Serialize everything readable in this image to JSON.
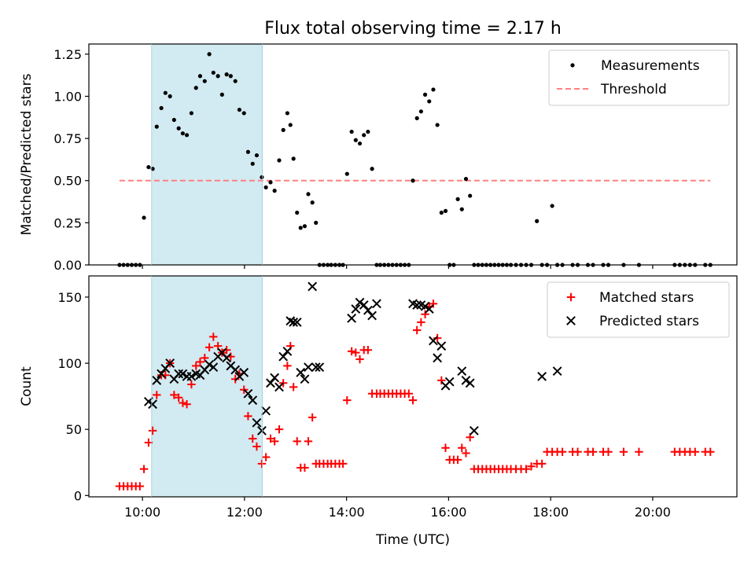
{
  "chart_data": {
    "title": "Flux total observing time = 2.17 h",
    "xlabel": "Time (UTC)",
    "x_unit": "hours UTC",
    "xlim": [
      8.95,
      21.65
    ],
    "x_ticks": [
      {
        "value": 10,
        "label": "10:00"
      },
      {
        "value": 12,
        "label": "12:00"
      },
      {
        "value": 14,
        "label": "14:00"
      },
      {
        "value": 16,
        "label": "16:00"
      },
      {
        "value": 18,
        "label": "18:00"
      },
      {
        "value": 20,
        "label": "20:00"
      }
    ],
    "observing_window": {
      "start": 10.18,
      "end": 12.35,
      "color": "#add8e6"
    },
    "panels": [
      {
        "type": "scatter",
        "ylabel": "Matched/Predicted stars",
        "ylim": [
          0,
          1.31
        ],
        "y_ticks": [
          {
            "value": 0.0,
            "label": "0.00"
          },
          {
            "value": 0.25,
            "label": "0.25"
          },
          {
            "value": 0.5,
            "label": "0.50"
          },
          {
            "value": 0.75,
            "label": "0.75"
          },
          {
            "value": 1.0,
            "label": "1.00"
          },
          {
            "value": 1.25,
            "label": "1.25"
          }
        ],
        "legend_position": "top-right",
        "series": [
          {
            "name": "Measurements",
            "marker": "dot",
            "color": "#000000",
            "x": [
              9.55,
              9.63,
              9.71,
              9.79,
              9.87,
              9.95,
              10.03,
              10.12,
              10.2,
              10.28,
              10.37,
              10.45,
              10.54,
              10.62,
              10.71,
              10.79,
              10.87,
              10.96,
              11.05,
              11.13,
              11.22,
              11.31,
              11.39,
              11.48,
              11.56,
              11.65,
              11.73,
              11.82,
              11.9,
              11.99,
              12.07,
              12.16,
              12.24,
              12.34,
              12.42,
              12.51,
              12.59,
              12.68,
              12.76,
              12.84,
              12.9,
              12.96,
              13.03,
              13.1,
              13.18,
              13.25,
              13.33,
              13.4,
              13.47,
              13.55,
              13.63,
              13.7,
              13.78,
              13.86,
              13.93,
              14.01,
              14.1,
              14.18,
              14.26,
              14.34,
              14.42,
              14.5,
              14.59,
              14.66,
              14.74,
              14.82,
              14.9,
              14.98,
              15.06,
              15.14,
              15.22,
              15.3,
              15.38,
              15.46,
              15.54,
              15.62,
              15.7,
              15.78,
              15.86,
              15.94,
              16.02,
              16.1,
              16.18,
              16.26,
              16.34,
              16.42,
              16.5,
              16.58,
              16.66,
              16.74,
              16.82,
              16.9,
              16.98,
              17.06,
              17.14,
              17.22,
              17.32,
              17.42,
              17.52,
              17.62,
              17.73,
              17.83,
              17.93,
              18.03,
              18.13,
              18.23,
              18.43,
              18.53,
              18.73,
              18.83,
              19.03,
              19.13,
              19.43,
              19.73,
              20.43,
              20.53,
              20.63,
              20.73,
              20.83,
              21.03,
              21.13
            ],
            "y": [
              0,
              0,
              0,
              0,
              0,
              0,
              0.28,
              0.58,
              0.57,
              0.82,
              0.93,
              1.02,
              1.0,
              0.86,
              0.81,
              0.78,
              0.77,
              0.9,
              1.05,
              1.12,
              1.09,
              1.25,
              1.14,
              1.12,
              1.01,
              1.13,
              1.12,
              1.09,
              0.92,
              0.9,
              0.67,
              0.6,
              0.65,
              0.52,
              0.46,
              0.49,
              0.44,
              0.62,
              0.8,
              0.9,
              0.83,
              0.63,
              0.31,
              0.22,
              0.23,
              0.42,
              0.37,
              0.25,
              0,
              0,
              0,
              0,
              0,
              0,
              0,
              0.54,
              0.79,
              0.74,
              0.72,
              0.77,
              0.79,
              0.57,
              0,
              0,
              0,
              0,
              0,
              0,
              0,
              0,
              0,
              0.5,
              0.87,
              0.91,
              1.01,
              0.97,
              1.04,
              0.83,
              0.31,
              0.32,
              0,
              0,
              0.39,
              0.33,
              0.51,
              0.41,
              0,
              0,
              0,
              0,
              0,
              0,
              0,
              0,
              0,
              0,
              0,
              0,
              0,
              0,
              0.26,
              0,
              0,
              0.35,
              0,
              0,
              0,
              0,
              0,
              0,
              0,
              0,
              0,
              0,
              0,
              0,
              0,
              0,
              0,
              0,
              0
            ]
          },
          {
            "name": "Threshold",
            "marker": "dashed-line",
            "color": "#ff8080",
            "x": [
              9.55,
              21.13
            ],
            "y": [
              0.5,
              0.5
            ]
          }
        ]
      },
      {
        "type": "scatter",
        "ylabel": "Count",
        "ylim": [
          -1,
          166
        ],
        "y_ticks": [
          {
            "value": 0,
            "label": "0"
          },
          {
            "value": 50,
            "label": "50"
          },
          {
            "value": 100,
            "label": "100"
          },
          {
            "value": 150,
            "label": "150"
          }
        ],
        "legend_position": "top-right",
        "series": [
          {
            "name": "Matched stars",
            "marker": "plus",
            "color": "#ff0000",
            "x": [
              9.55,
              9.63,
              9.71,
              9.79,
              9.87,
              9.95,
              10.03,
              10.12,
              10.2,
              10.28,
              10.37,
              10.45,
              10.54,
              10.62,
              10.71,
              10.79,
              10.87,
              10.96,
              11.05,
              11.13,
              11.22,
              11.31,
              11.39,
              11.48,
              11.56,
              11.65,
              11.73,
              11.82,
              11.9,
              11.99,
              12.07,
              12.16,
              12.24,
              12.34,
              12.42,
              12.51,
              12.59,
              12.68,
              12.76,
              12.84,
              12.9,
              12.96,
              13.03,
              13.1,
              13.18,
              13.25,
              13.33,
              13.4,
              13.47,
              13.55,
              13.63,
              13.7,
              13.78,
              13.86,
              13.93,
              14.01,
              14.1,
              14.18,
              14.26,
              14.34,
              14.42,
              14.5,
              14.59,
              14.66,
              14.74,
              14.82,
              14.9,
              14.98,
              15.06,
              15.14,
              15.22,
              15.3,
              15.38,
              15.46,
              15.54,
              15.62,
              15.7,
              15.78,
              15.86,
              15.94,
              16.02,
              16.1,
              16.18,
              16.26,
              16.34,
              16.42,
              16.5,
              16.58,
              16.66,
              16.74,
              16.82,
              16.9,
              16.98,
              17.06,
              17.14,
              17.22,
              17.32,
              17.42,
              17.52,
              17.62,
              17.73,
              17.83,
              17.93,
              18.03,
              18.13,
              18.23,
              18.43,
              18.53,
              18.73,
              18.83,
              19.03,
              19.13,
              19.43,
              19.73,
              20.43,
              20.53,
              20.63,
              20.73,
              20.83,
              21.03,
              21.13
            ],
            "y": [
              7,
              7,
              7,
              7,
              7,
              7,
              20,
              40,
              49,
              76,
              91,
              91,
              100,
              76,
              74,
              70,
              69,
              84,
              98,
              101,
              104,
              112,
              120,
              113,
              108,
              110,
              105,
              88,
              92,
              80,
              60,
              43,
              37,
              24,
              29,
              43,
              41,
              50,
              85,
              98,
              113,
              82,
              41,
              21,
              21,
              41,
              59,
              24,
              24,
              24,
              24,
              24,
              24,
              24,
              24,
              72,
              109,
              108,
              103,
              110,
              110,
              77,
              77,
              77,
              77,
              77,
              77,
              77,
              77,
              77,
              77,
              72,
              125,
              131,
              137,
              143,
              145,
              119,
              87,
              36,
              27,
              27,
              27,
              36,
              32,
              44,
              20,
              20,
              20,
              20,
              20,
              20,
              20,
              20,
              20,
              20,
              20,
              20,
              20,
              22,
              24,
              24,
              33,
              33,
              33,
              33,
              33,
              33,
              33,
              33,
              33,
              33,
              33,
              33,
              33,
              33,
              33,
              33,
              33,
              33,
              33
            ]
          },
          {
            "name": "Predicted stars",
            "marker": "x",
            "color": "#000000",
            "x": [
              10.12,
              10.2,
              10.28,
              10.37,
              10.45,
              10.54,
              10.62,
              10.71,
              10.79,
              10.87,
              10.96,
              11.05,
              11.13,
              11.22,
              11.31,
              11.39,
              11.48,
              11.56,
              11.65,
              11.73,
              11.82,
              11.9,
              11.99,
              12.07,
              12.16,
              12.24,
              12.34,
              12.42,
              12.51,
              12.59,
              12.68,
              12.76,
              12.84,
              12.9,
              12.96,
              13.03,
              13.1,
              13.18,
              13.25,
              13.33,
              13.4,
              13.47,
              14.1,
              14.18,
              14.26,
              14.34,
              14.42,
              14.5,
              14.59,
              15.3,
              15.38,
              15.46,
              15.54,
              15.62,
              15.7,
              15.78,
              15.86,
              15.94,
              16.02,
              16.26,
              16.34,
              16.42,
              16.5,
              17.83,
              18.13
            ],
            "y": [
              71,
              69,
              87,
              92,
              96,
              100,
              88,
              92,
              92,
              90,
              90,
              92,
              91,
              95,
              99,
              97,
              105,
              108,
              104,
              98,
              95,
              90,
              93,
              77,
              72,
              55,
              49,
              64,
              85,
              89,
              82,
              105,
              109,
              132,
              131,
              131,
              93,
              88,
              97,
              158,
              97,
              97,
              134,
              141,
              146,
              144,
              140,
              136,
              145,
              145,
              144,
              144,
              143,
              141,
              117,
              104,
              113,
              83,
              86,
              94,
              87,
              85,
              49,
              90,
              94
            ]
          }
        ]
      }
    ]
  }
}
